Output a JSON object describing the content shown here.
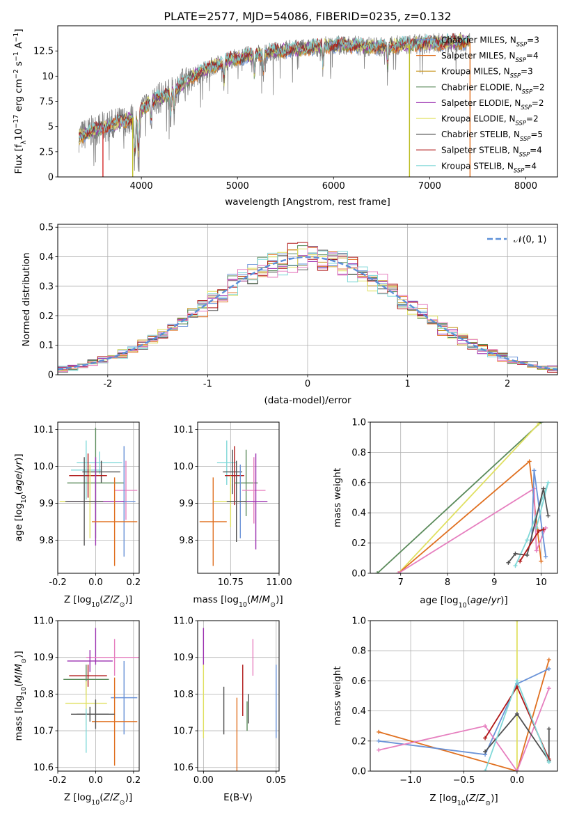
{
  "chart_data": [
    {
      "id": "spectrum",
      "type": "line",
      "title": "PLATE=2577, MJD=54086, FIBERID=0235, z=0.132",
      "xlabel": "wavelength [Angstrom, rest frame]",
      "ylabel": "Flux [f_λ10⁻¹⁷ erg cm⁻² s⁻¹ A⁻¹]",
      "xlim": [
        3130,
        8330
      ],
      "ylim": [
        0,
        15
      ],
      "xticks": [
        4000,
        5000,
        6000,
        7000,
        8000
      ],
      "yticks": [
        0,
        2.5,
        5.0,
        7.5,
        10.0,
        12.5
      ],
      "grid": false,
      "legend_position": "top-right",
      "continuum": {
        "x": [
          3350,
          3500,
          3700,
          3900,
          4100,
          4300,
          4500,
          4700,
          4900,
          5100,
          5300,
          5500,
          5700,
          5900,
          6100,
          6300,
          6500,
          6700,
          6900,
          7100,
          7300,
          7420
        ],
        "y": [
          4.0,
          4.6,
          5.2,
          5.8,
          7.5,
          8.3,
          9.8,
          10.8,
          11.6,
          12.0,
          12.3,
          12.6,
          12.7,
          13.0,
          13.1,
          13.0,
          12.9,
          13.1,
          13.2,
          13.3,
          13.4,
          13.4
        ]
      },
      "absorption_lines": [
        3933,
        3968,
        4101,
        4305,
        4340,
        4861,
        5175,
        5270,
        5890,
        6563
      ],
      "drops": [
        {
          "x": 3600,
          "color": "#d62728"
        },
        {
          "x": 3910,
          "color": "#bcbd22"
        },
        {
          "x": 6790,
          "color": "#bcbd22"
        },
        {
          "x": 7420,
          "color": "#e07020"
        }
      ],
      "series": [
        {
          "name": "Chabrier MILES, N_SSP=3",
          "label": "Chabrier MILES, N",
          "sub": "SSP",
          "tail": "=3",
          "color": "#6a93d8"
        },
        {
          "name": "Salpeter MILES, N_SSP=4",
          "label": "Salpeter MILES, N",
          "sub": "SSP",
          "tail": "=4",
          "color": "#e07020"
        },
        {
          "name": "Kroupa MILES, N_SSP=3",
          "label": "Kroupa MILES, N",
          "sub": "SSP",
          "tail": "=3",
          "color": "#c8961e"
        },
        {
          "name": "Chabrier ELODIE, N_SSP=2",
          "label": "Chabrier ELODIE, N",
          "sub": "SSP",
          "tail": "=2",
          "color": "#5a8a5a"
        },
        {
          "name": "Salpeter ELODIE, N_SSP=2",
          "label": "Salpeter ELODIE, N",
          "sub": "SSP",
          "tail": "=2",
          "color": "#9b30b0"
        },
        {
          "name": "Kroupa ELODIE, N_SSP=2",
          "label": "Kroupa ELODIE, N",
          "sub": "SSP",
          "tail": "=2",
          "color": "#e0e060"
        },
        {
          "name": "Chabrier STELIB, N_SSP=5",
          "label": "Chabrier STELIB, N",
          "sub": "SSP",
          "tail": "=5",
          "color": "#505050"
        },
        {
          "name": "Salpeter STELIB, N_SSP=4",
          "label": "Salpeter STELIB, N",
          "sub": "SSP",
          "tail": "=4",
          "color": "#b01818"
        },
        {
          "name": "Kroupa STELIB, N_SSP=4",
          "label": "Kroupa STELIB, N",
          "sub": "SSP",
          "tail": "=4",
          "color": "#80d8d8"
        }
      ],
      "data_color": "#808080"
    },
    {
      "id": "residuals",
      "type": "bar",
      "xlabel": "(data-model)/error",
      "ylabel": "Normed distribution",
      "xlim": [
        -2.5,
        2.5
      ],
      "ylim": [
        0,
        0.51
      ],
      "xticks": [
        -2,
        -1,
        0,
        1,
        2
      ],
      "yticks": [
        0.0,
        0.1,
        0.2,
        0.3,
        0.4,
        0.5
      ],
      "grid": true,
      "legend_position": "top-right",
      "legend": "𝒩(0, 1)",
      "bins": [
        -2.5,
        2.5,
        50
      ],
      "gaussian": {
        "mean": 0,
        "sigma": 1,
        "color": "#5b8fd8"
      },
      "hist_colors": [
        "#6a93d8",
        "#e07020",
        "#c8961e",
        "#5a8a5a",
        "#9b30b0",
        "#e0e060",
        "#505050",
        "#b01818",
        "#80d8d8",
        "#e67fbf"
      ]
    },
    {
      "id": "age-vs-Z",
      "type": "scatter",
      "xlabel": "Z [log10(Z/Z⊙)]",
      "ylabel": "age [log10(age/yr)]",
      "xlim": [
        -0.2,
        0.23
      ],
      "ylim": [
        9.71,
        10.12
      ],
      "xticks": [
        "-0.2",
        "0.0",
        "0.2"
      ],
      "yticks": [
        "9.8",
        "9.9",
        "10.0",
        "10.1"
      ],
      "grid": true,
      "points": [
        {
          "x": 0.02,
          "y": 10.01,
          "xerr": 0.12,
          "yerr": 0.03,
          "color": "#80d8d8"
        },
        {
          "x": -0.05,
          "y": 9.99,
          "xerr": 0.08,
          "yerr": 0.08,
          "color": "#80d8d8"
        },
        {
          "x": 0.03,
          "y": 9.985,
          "xerr": 0.1,
          "yerr": 0.03,
          "color": "#505050"
        },
        {
          "x": -0.04,
          "y": 9.975,
          "xerr": 0.1,
          "yerr": 0.06,
          "color": "#b01818"
        },
        {
          "x": 0.0,
          "y": 9.955,
          "xerr": 0.15,
          "yerr": 0.15,
          "color": "#5a8a5a"
        },
        {
          "x": 0.16,
          "y": 9.935,
          "xerr": 0.06,
          "yerr": 0.08,
          "color": "#e67fbf"
        },
        {
          "x": 0.15,
          "y": 9.905,
          "xerr": 0.06,
          "yerr": 0.15,
          "color": "#6a93d8"
        },
        {
          "x": -0.03,
          "y": 9.905,
          "xerr": 0.16,
          "yerr": 0.1,
          "color": "#e0e060"
        },
        {
          "x": 0.0,
          "y": 9.905,
          "xerr": 0.15,
          "yerr": 0.12,
          "color": "#9b30b0"
        },
        {
          "x": -0.06,
          "y": 9.905,
          "xerr": 0.1,
          "yerr": 0.12,
          "color": "#505050"
        },
        {
          "x": 0.1,
          "y": 9.85,
          "xerr": 0.12,
          "yerr": 0.12,
          "color": "#e07020"
        }
      ]
    },
    {
      "id": "age-vs-mass",
      "type": "scatter",
      "xlabel": "mass [log10(M/M⊙)]",
      "xlim": [
        10.58,
        11.0
      ],
      "ylim": [
        9.71,
        10.12
      ],
      "xticks": [
        "10.75",
        "11.00"
      ],
      "yticks": [
        "9.8",
        "9.9",
        "10.0",
        "10.1"
      ],
      "grid": true,
      "points": [
        {
          "x": 10.73,
          "y": 10.01,
          "xerr": 0.05,
          "yerr": 0.06,
          "color": "#80d8d8"
        },
        {
          "x": 10.76,
          "y": 9.985,
          "xerr": 0.05,
          "yerr": 0.06,
          "color": "#505050"
        },
        {
          "x": 10.77,
          "y": 9.975,
          "xerr": 0.05,
          "yerr": 0.08,
          "color": "#b01818"
        },
        {
          "x": 10.83,
          "y": 9.955,
          "xerr": 0.06,
          "yerr": 0.09,
          "color": "#5a8a5a"
        },
        {
          "x": 10.87,
          "y": 9.935,
          "xerr": 0.06,
          "yerr": 0.09,
          "color": "#e67fbf"
        },
        {
          "x": 10.8,
          "y": 9.905,
          "xerr": 0.07,
          "yerr": 0.1,
          "color": "#6a93d8"
        },
        {
          "x": 10.75,
          "y": 9.905,
          "xerr": 0.09,
          "yerr": 0.07,
          "color": "#e0e060"
        },
        {
          "x": 10.88,
          "y": 9.905,
          "xerr": 0.06,
          "yerr": 0.13,
          "color": "#9b30b0"
        },
        {
          "x": 10.78,
          "y": 9.905,
          "xerr": 0.05,
          "yerr": 0.11,
          "color": "#505050"
        },
        {
          "x": 10.66,
          "y": 9.85,
          "xerr": 0.07,
          "yerr": 0.12,
          "color": "#e07020"
        }
      ]
    },
    {
      "id": "weight-vs-age",
      "type": "line",
      "xlabel": "age log10(age/yr)",
      "ylabel": "mass weight",
      "xlim": [
        6.35,
        10.35
      ],
      "ylim": [
        0,
        1
      ],
      "xticks": [
        "7",
        "8",
        "9",
        "10"
      ],
      "yticks": [
        "0.0",
        "0.2",
        "0.4",
        "0.6",
        "0.8",
        "1.0"
      ],
      "grid": true,
      "series": [
        {
          "color": "#5a8a5a",
          "x": [
            6.5,
            10.0
          ],
          "y": [
            0.0,
            1.0
          ]
        },
        {
          "color": "#e0e060",
          "x": [
            6.95,
            9.95
          ],
          "y": [
            0.0,
            0.99
          ]
        },
        {
          "color": "#e07020",
          "x": [
            6.95,
            9.75,
            10.0
          ],
          "y": [
            0.0,
            0.74,
            0.08
          ]
        },
        {
          "color": "#e67fbf",
          "x": [
            6.95,
            9.85,
            9.9,
            10.1
          ],
          "y": [
            0.0,
            0.56,
            0.15,
            0.3
          ]
        },
        {
          "color": "#6a93d8",
          "x": [
            9.8,
            9.85,
            10.1
          ],
          "y": [
            0.22,
            0.68,
            0.11
          ]
        },
        {
          "color": "#80d8d8",
          "x": [
            9.45,
            9.7,
            10.15,
            9.9
          ],
          "y": [
            0.05,
            0.22,
            0.6,
            0.3
          ]
        },
        {
          "color": "#505050",
          "x": [
            9.3,
            9.45,
            9.7,
            10.05,
            10.15
          ],
          "y": [
            0.07,
            0.13,
            0.12,
            0.56,
            0.38
          ]
        },
        {
          "color": "#b01818",
          "x": [
            9.55,
            9.95,
            10.05
          ],
          "y": [
            0.08,
            0.28,
            0.29
          ]
        }
      ]
    },
    {
      "id": "mass-vs-Z",
      "type": "scatter",
      "xlabel": "Z [log10(Z/Z⊙)]",
      "ylabel": "mass [log10(M/M⊙)]",
      "xlim": [
        -0.2,
        0.23
      ],
      "ylim": [
        10.59,
        11.0
      ],
      "xticks": [
        "-0.2",
        "0.0",
        "0.2"
      ],
      "yticks": [
        "10.6",
        "10.7",
        "10.8",
        "10.9",
        "11.0"
      ],
      "grid": true,
      "points": [
        {
          "x": 0.0,
          "y": 10.93,
          "xerr": 0.0,
          "yerr": 0.05,
          "color": "#9b30b0"
        },
        {
          "x": 0.1,
          "y": 10.9,
          "xerr": 0.15,
          "yerr": 0.05,
          "color": "#e67fbf"
        },
        {
          "x": -0.03,
          "y": 10.89,
          "xerr": 0.12,
          "yerr": 0.03,
          "color": "#9b30b0"
        },
        {
          "x": -0.04,
          "y": 10.85,
          "xerr": 0.1,
          "yerr": 0.03,
          "color": "#b01818"
        },
        {
          "x": -0.05,
          "y": 10.84,
          "xerr": 0.12,
          "yerr": 0.04,
          "color": "#5a8a5a"
        },
        {
          "x": 0.15,
          "y": 10.79,
          "xerr": 0.07,
          "yerr": 0.1,
          "color": "#6a93d8"
        },
        {
          "x": -0.05,
          "y": 10.775,
          "xerr": 0.11,
          "yerr": 0.06,
          "color": "#e0e060"
        },
        {
          "x": 0.1,
          "y": 10.725,
          "xerr": 0.12,
          "yerr": 0.12,
          "color": "#e07020"
        },
        {
          "x": 0.0,
          "y": 10.745,
          "xerr": 0.1,
          "yerr": 0.04,
          "color": "#505050"
        },
        {
          "x": -0.03,
          "y": 10.745,
          "xerr": 0.1,
          "yerr": 0.02,
          "color": "#505050"
        },
        {
          "x": -0.05,
          "y": 10.7,
          "xerr": 0.0,
          "yerr": 0.06,
          "color": "#80d8d8"
        }
      ]
    },
    {
      "id": "mass-vs-ebv",
      "type": "scatter",
      "xlabel": "E(B-V)",
      "xlim": [
        -0.004,
        0.052
      ],
      "ylim": [
        10.59,
        11.0
      ],
      "xticks": [
        "0.00",
        "0.05"
      ],
      "yticks": [
        "10.6",
        "10.7",
        "10.8",
        "10.9",
        "11.0"
      ],
      "grid": true,
      "points": [
        {
          "x": 0.0,
          "y": 10.93,
          "yerr": 0.05,
          "color": "#9b30b0"
        },
        {
          "x": 0.0,
          "y": 10.78,
          "yerr": 0.1,
          "color": "#e0e060"
        },
        {
          "x": 0.034,
          "y": 10.9,
          "yerr": 0.05,
          "color": "#e67fbf"
        },
        {
          "x": 0.027,
          "y": 10.81,
          "yerr": 0.07,
          "color": "#b01818"
        },
        {
          "x": 0.031,
          "y": 10.76,
          "yerr": 0.04,
          "color": "#505050"
        },
        {
          "x": 0.05,
          "y": 10.78,
          "yerr": 0.1,
          "color": "#6a93d8"
        },
        {
          "x": 0.014,
          "y": 10.755,
          "yerr": 0.065,
          "color": "#505050"
        },
        {
          "x": 0.023,
          "y": 10.69,
          "yerr": 0.1,
          "color": "#e07020"
        },
        {
          "x": 0.03,
          "y": 10.74,
          "yerr": 0.04,
          "color": "#5a8a5a"
        }
      ]
    },
    {
      "id": "weight-vs-Z",
      "type": "line",
      "xlabel": "Z [log10(Z/Z⊙)]",
      "ylabel": "mass weight",
      "xlim": [
        -1.38,
        0.38
      ],
      "ylim": [
        0,
        1
      ],
      "xticks": [
        "−1.0",
        "−0.5",
        "0.0"
      ],
      "yticks": [
        "0.0",
        "0.2",
        "0.4",
        "0.6",
        "0.8",
        "1.0"
      ],
      "grid": true,
      "series": [
        {
          "color": "#e0e060",
          "x": [
            0.0,
            0.0
          ],
          "y": [
            0.0,
            1.0
          ]
        },
        {
          "color": "#e07020",
          "x": [
            -1.3,
            0.0,
            0.3
          ],
          "y": [
            0.26,
            0.0,
            0.74
          ]
        },
        {
          "color": "#6a93d8",
          "x": [
            -1.3,
            -0.3,
            0.0,
            0.3
          ],
          "y": [
            0.2,
            0.11,
            0.58,
            0.68
          ]
        },
        {
          "color": "#e67fbf",
          "x": [
            -1.3,
            -0.3,
            0.0,
            0.3
          ],
          "y": [
            0.14,
            0.3,
            0.0,
            0.55
          ]
        },
        {
          "color": "#505050",
          "x": [
            -0.3,
            0.0,
            0.3,
            0.3
          ],
          "y": [
            0.13,
            0.38,
            0.07,
            0.28
          ]
        },
        {
          "color": "#b01818",
          "x": [
            -0.3,
            0.0,
            0.3
          ],
          "y": [
            0.22,
            0.56,
            0.08
          ]
        },
        {
          "color": "#80d8d8",
          "x": [
            -0.3,
            0.0,
            0.3
          ],
          "y": [
            0.0,
            0.6,
            0.06
          ]
        }
      ]
    }
  ]
}
